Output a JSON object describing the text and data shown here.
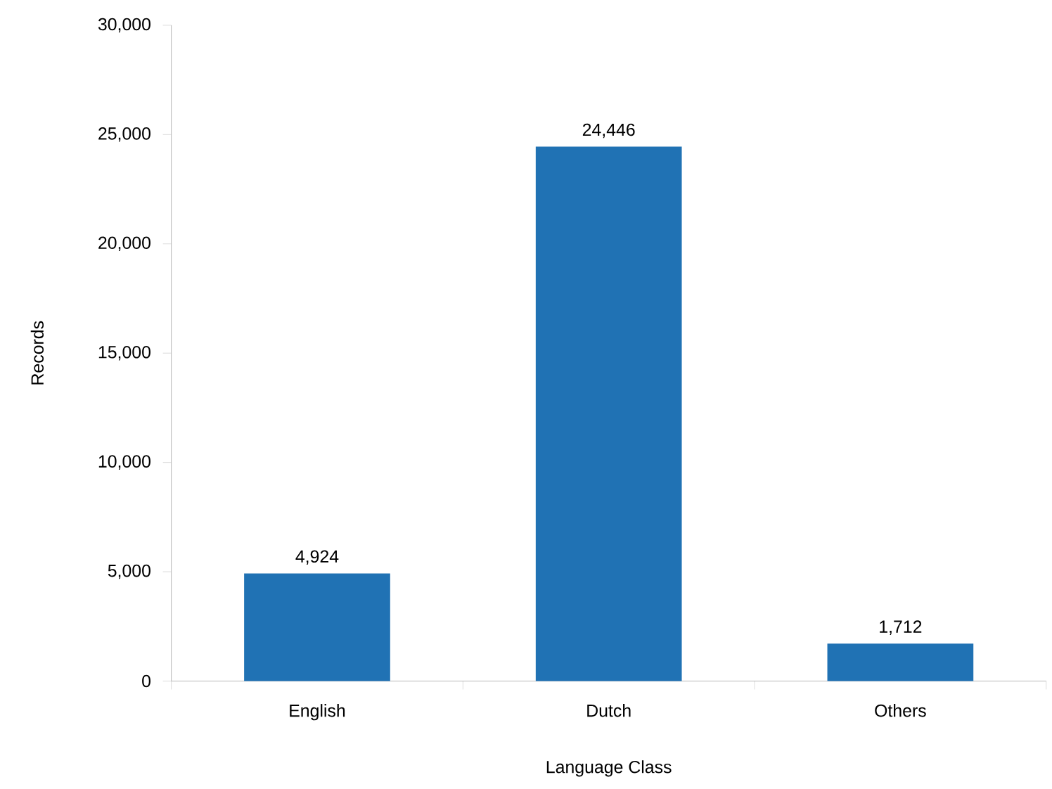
{
  "chart_data": {
    "type": "bar",
    "xlabel": "Language Class",
    "ylabel": "Records",
    "categories": [
      "English",
      "Dutch",
      "Others"
    ],
    "values": [
      4924,
      24446,
      1712
    ],
    "value_labels": [
      "4,924",
      "24,446",
      "1,712"
    ],
    "color": "#2072b4",
    "ylim": [
      0,
      30000
    ],
    "yticks": [
      {
        "value": 0,
        "label": "0"
      },
      {
        "value": 5000,
        "label": "5,000"
      },
      {
        "value": 10000,
        "label": "10,000"
      },
      {
        "value": 15000,
        "label": "15,000"
      },
      {
        "value": 20000,
        "label": "20,000"
      },
      {
        "value": 25000,
        "label": "25,000"
      },
      {
        "value": 30000,
        "label": "30,000"
      }
    ],
    "grid": false
  }
}
